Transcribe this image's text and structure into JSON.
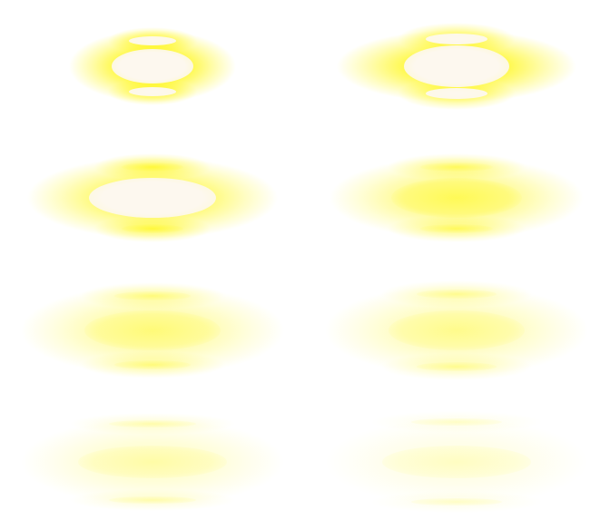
{
  "sprite_sheet": {
    "description_name": "light-glow-animation-frames",
    "background_color": "#ffffff",
    "glow_color": "#fff600",
    "core_color": "#fdf8ef",
    "frames": [
      {
        "id": "frame-1",
        "intensity": 1.0
      },
      {
        "id": "frame-2",
        "intensity": 0.95
      },
      {
        "id": "frame-3",
        "intensity": 0.75
      },
      {
        "id": "frame-4",
        "intensity": 0.55
      },
      {
        "id": "frame-5",
        "intensity": 0.4
      },
      {
        "id": "frame-6",
        "intensity": 0.32
      },
      {
        "id": "frame-7",
        "intensity": 0.22
      },
      {
        "id": "frame-8",
        "intensity": 0.12
      }
    ]
  }
}
